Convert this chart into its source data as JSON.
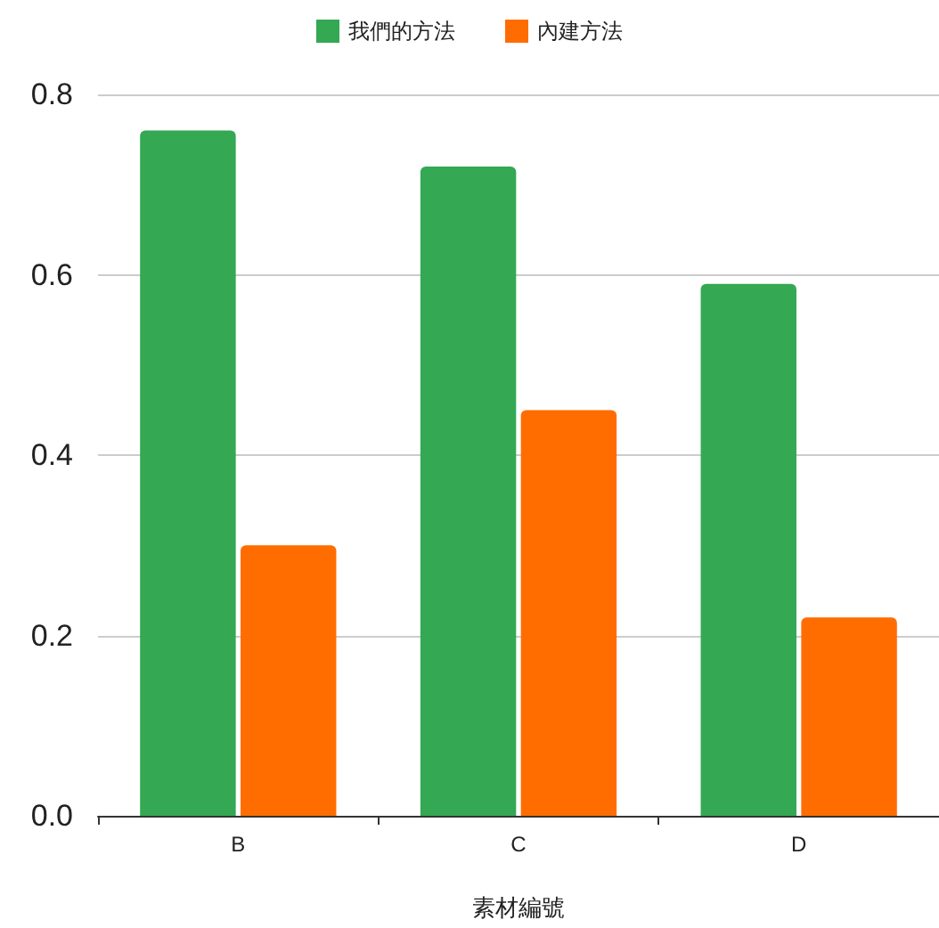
{
  "chart_data": {
    "type": "bar",
    "xlabel": "素材編號",
    "categories": [
      "B",
      "C",
      "D"
    ],
    "series": [
      {
        "name": "我們的方法",
        "color": "#34a853",
        "values": [
          0.76,
          0.72,
          0.59
        ]
      },
      {
        "name": "內建方法",
        "color": "#ff6d01",
        "values": [
          0.3,
          0.45,
          0.22
        ]
      }
    ],
    "ylim": [
      0,
      0.8
    ],
    "yticks": [
      {
        "value": 0,
        "label": "0.0"
      },
      0.2,
      0.4,
      0.6,
      0.8
    ],
    "grid": "y",
    "legend": "top"
  }
}
